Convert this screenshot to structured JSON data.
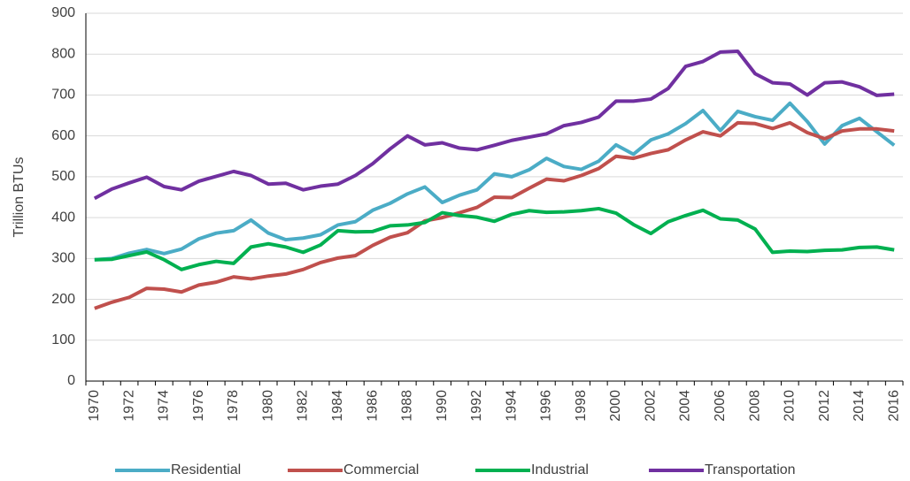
{
  "chart_data": {
    "type": "line",
    "ylabel": "Trillion BTUs",
    "categories": [
      "1970",
      null,
      "1972",
      null,
      "1974",
      null,
      "1976",
      null,
      "1978",
      null,
      "1980",
      null,
      "1982",
      null,
      "1984",
      null,
      "1986",
      null,
      "1988",
      null,
      "1990",
      null,
      "1992",
      null,
      "1994",
      null,
      "1996",
      null,
      "1998",
      null,
      "2000",
      null,
      "2002",
      null,
      "2004",
      null,
      "2006",
      null,
      "2008",
      null,
      "2010",
      null,
      "2012",
      null,
      "2014",
      null,
      "2016"
    ],
    "series": [
      {
        "name": "Residential",
        "color": "#4bacc6",
        "values": [
          297,
          300,
          313,
          322,
          312,
          323,
          348,
          362,
          368,
          394,
          362,
          346,
          350,
          358,
          382,
          390,
          418,
          435,
          458,
          475,
          437,
          455,
          468,
          507,
          500,
          517,
          545,
          525,
          518,
          538,
          578,
          555,
          590,
          605,
          630,
          662,
          613,
          660,
          647,
          638,
          680,
          635,
          580,
          625,
          643,
          610,
          577
        ]
      },
      {
        "name": "Commercial",
        "color": "#c0504d",
        "values": [
          178,
          193,
          205,
          227,
          225,
          218,
          235,
          242,
          255,
          250,
          257,
          262,
          273,
          290,
          301,
          307,
          332,
          352,
          363,
          392,
          400,
          412,
          425,
          450,
          449,
          472,
          494,
          490,
          503,
          520,
          550,
          545,
          557,
          566,
          590,
          610,
          600,
          632,
          630,
          618,
          632,
          608,
          593,
          612,
          617,
          617,
          612
        ]
      },
      {
        "name": "Industrial",
        "color": "#00b050",
        "values": [
          297,
          298,
          307,
          316,
          297,
          273,
          285,
          293,
          288,
          328,
          336,
          328,
          315,
          333,
          368,
          365,
          366,
          380,
          382,
          388,
          412,
          405,
          401,
          391,
          408,
          417,
          413,
          414,
          417,
          422,
          411,
          383,
          361,
          390,
          405,
          418,
          397,
          394,
          372,
          315,
          318,
          317,
          320,
          321,
          327,
          328,
          321
        ]
      },
      {
        "name": "Transportation",
        "color": "#7030a0",
        "values": [
          447,
          470,
          485,
          499,
          476,
          468,
          489,
          501,
          513,
          503,
          482,
          484,
          468,
          477,
          482,
          503,
          532,
          568,
          600,
          578,
          583,
          570,
          566,
          577,
          589,
          597,
          605,
          625,
          633,
          646,
          685,
          685,
          690,
          716,
          770,
          782,
          805,
          807,
          752,
          730,
          727,
          700,
          730,
          732,
          720,
          699,
          702
        ]
      }
    ],
    "ylim": [
      0,
      900
    ],
    "yticks": [
      0,
      100,
      200,
      300,
      400,
      500,
      600,
      700,
      800,
      900
    ],
    "grid": true,
    "legend": "bottom"
  }
}
